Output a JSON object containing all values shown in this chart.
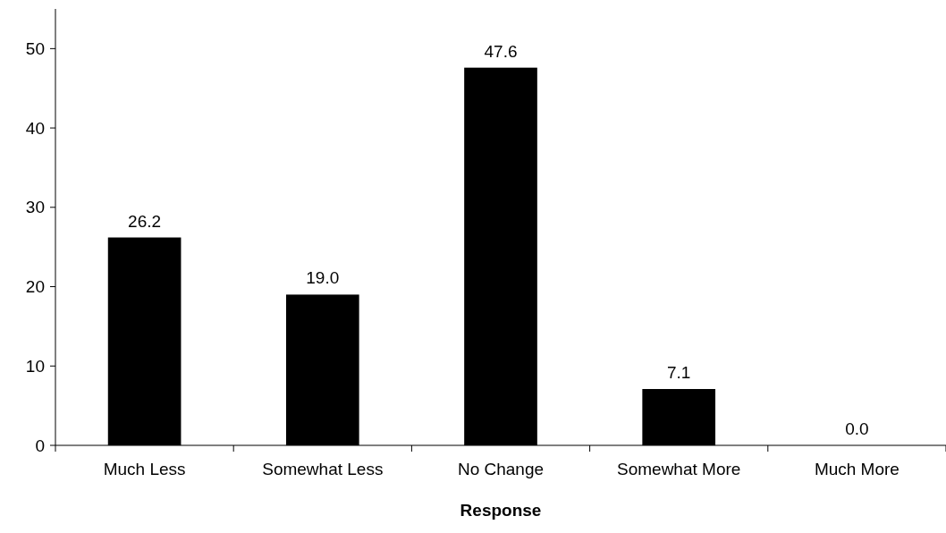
{
  "chart_data": {
    "type": "bar",
    "xlabel": "Response",
    "categories": [
      "Much Less",
      "Somewhat Less",
      "No Change",
      "Somewhat More",
      "Much More"
    ],
    "values": [
      26.2,
      19.0,
      47.6,
      7.1,
      0.0
    ],
    "value_labels": [
      "26.2",
      "19.0",
      "47.6",
      "7.1",
      "0.0"
    ],
    "color": "#000000",
    "ylim": [
      0,
      55
    ],
    "yticks": [
      0,
      10,
      20,
      30,
      40,
      50
    ],
    "grid": false
  }
}
